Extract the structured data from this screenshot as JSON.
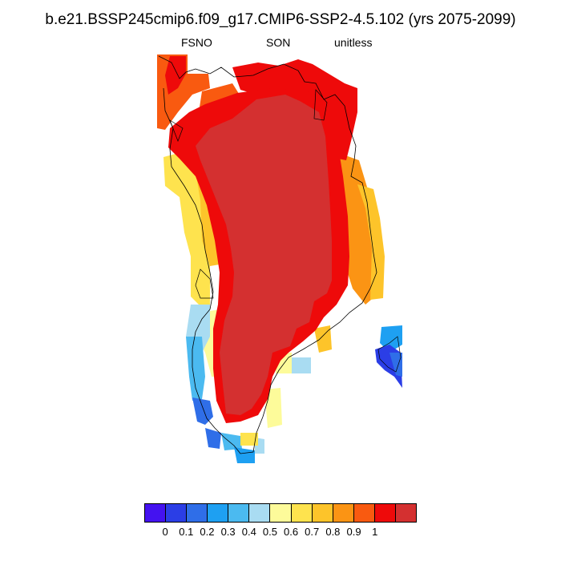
{
  "title": "b.e21.BSSP245cmip6.f09_g17.CMIP6-SSP2-4.5.102 (yrs 2075-2099)",
  "subtitle": {
    "variable": "FSNO",
    "season": "SON",
    "units": "unitless"
  },
  "colorbar": {
    "colors": [
      "#4412f0",
      "#2b3ee6",
      "#2f6ee8",
      "#1ea0f2",
      "#4bbaf0",
      "#a9dcf2",
      "#fdfb9a",
      "#fee34e",
      "#fdc42a",
      "#fb9414",
      "#f95a10",
      "#ee0a0a",
      "#d43030"
    ],
    "ticks": [
      "0",
      "0.1",
      "0.2",
      "0.3",
      "0.4",
      "0.5",
      "0.6",
      "0.7",
      "0.8",
      "0.9",
      "1"
    ]
  },
  "map_description": "Greenland snow-fraction field; interior near 1 (dark red), coastal margins lower, southwest and east coast blue"
}
